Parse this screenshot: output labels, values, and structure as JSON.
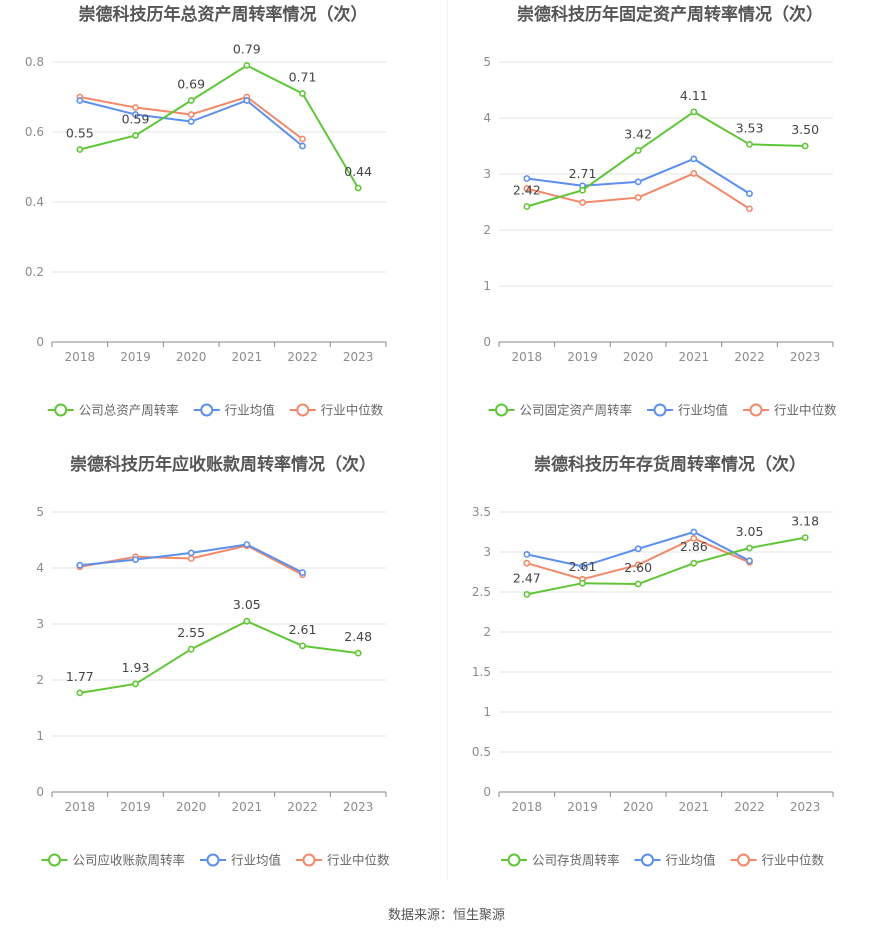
{
  "legend_common": {
    "avg": "行业均值",
    "median": "行业中位数"
  },
  "colors": {
    "company": "#5fc735",
    "avg": "#5b8ff0",
    "median": "#f4896a",
    "grid": "#e6e6e6",
    "axis": "#8a8a8a",
    "tick": "#8c8c8c",
    "title": "#555555"
  },
  "footer": {
    "source": "数据来源：恒生聚源"
  },
  "chart_data": [
    {
      "type": "line",
      "title": "崇德科技历年总资产周转率情况（次）",
      "categories": [
        "2018",
        "2019",
        "2020",
        "2021",
        "2022",
        "2023"
      ],
      "ylim": [
        0,
        0.8
      ],
      "yticks": [
        0,
        0.2,
        0.4,
        0.6,
        0.8
      ],
      "ytick_labels": [
        "0",
        "0.2",
        "0.4",
        "0.6",
        "0.8"
      ],
      "grid": true,
      "legend_position": "bottom",
      "series": [
        {
          "name": "公司总资产周转率",
          "role": "company",
          "values": [
            0.55,
            0.59,
            0.69,
            0.79,
            0.71,
            0.44
          ],
          "labels": [
            "0.55",
            "0.59",
            "0.69",
            "0.79",
            "0.71",
            "0.44"
          ]
        },
        {
          "name": "行业均值",
          "role": "avg",
          "values": [
            0.69,
            0.65,
            0.63,
            0.69,
            0.56,
            null
          ]
        },
        {
          "name": "行业中位数",
          "role": "median",
          "values": [
            0.7,
            0.67,
            0.65,
            0.7,
            0.58,
            null
          ]
        }
      ]
    },
    {
      "type": "line",
      "title": "崇德科技历年固定资产周转率情况（次）",
      "categories": [
        "2018",
        "2019",
        "2020",
        "2021",
        "2022",
        "2023"
      ],
      "ylim": [
        0,
        5
      ],
      "yticks": [
        0,
        1,
        2,
        3,
        4,
        5
      ],
      "ytick_labels": [
        "0",
        "1",
        "2",
        "3",
        "4",
        "5"
      ],
      "grid": true,
      "legend_position": "bottom",
      "series": [
        {
          "name": "公司固定资产周转率",
          "role": "company",
          "values": [
            2.42,
            2.71,
            3.42,
            4.11,
            3.53,
            3.5
          ],
          "labels": [
            "2.42",
            "2.71",
            "3.42",
            "4.11",
            "3.53",
            "3.50"
          ]
        },
        {
          "name": "行业均值",
          "role": "avg",
          "values": [
            2.92,
            2.79,
            2.86,
            3.27,
            2.65,
            null
          ]
        },
        {
          "name": "行业中位数",
          "role": "median",
          "values": [
            2.74,
            2.49,
            2.58,
            3.01,
            2.38,
            null
          ]
        }
      ]
    },
    {
      "type": "line",
      "title": "崇德科技历年应收账款周转率情况（次）",
      "categories": [
        "2018",
        "2019",
        "2020",
        "2021",
        "2022",
        "2023"
      ],
      "ylim": [
        0,
        5
      ],
      "yticks": [
        0,
        1,
        2,
        3,
        4,
        5
      ],
      "ytick_labels": [
        "0",
        "1",
        "2",
        "3",
        "4",
        "5"
      ],
      "grid": true,
      "legend_position": "bottom",
      "series": [
        {
          "name": "公司应收账款周转率",
          "role": "company",
          "values": [
            1.77,
            1.93,
            2.55,
            3.05,
            2.61,
            2.48
          ],
          "labels": [
            "1.77",
            "1.93",
            "2.55",
            "3.05",
            "2.61",
            "2.48"
          ]
        },
        {
          "name": "行业均值",
          "role": "avg",
          "values": [
            4.05,
            4.15,
            4.27,
            4.42,
            3.92,
            null
          ]
        },
        {
          "name": "行业中位数",
          "role": "median",
          "values": [
            4.02,
            4.2,
            4.17,
            4.4,
            3.88,
            null
          ]
        }
      ]
    },
    {
      "type": "line",
      "title": "崇德科技历年存货周转率情况（次）",
      "categories": [
        "2018",
        "2019",
        "2020",
        "2021",
        "2022",
        "2023"
      ],
      "ylim": [
        0,
        3.5
      ],
      "yticks": [
        0,
        0.5,
        1,
        1.5,
        2,
        2.5,
        3,
        3.5
      ],
      "ytick_labels": [
        "0",
        "0.5",
        "1",
        "1.5",
        "2",
        "2.5",
        "3",
        "3.5"
      ],
      "grid": true,
      "legend_position": "bottom",
      "series": [
        {
          "name": "公司存货周转率",
          "role": "company",
          "values": [
            2.47,
            2.61,
            2.6,
            2.86,
            3.05,
            3.18
          ],
          "labels": [
            "2.47",
            "2.61",
            "2.60",
            "2.86",
            "3.05",
            "3.18"
          ]
        },
        {
          "name": "行业均值",
          "role": "avg",
          "values": [
            2.97,
            2.82,
            3.04,
            3.25,
            2.89,
            null
          ]
        },
        {
          "name": "行业中位数",
          "role": "median",
          "values": [
            2.86,
            2.66,
            2.84,
            3.17,
            2.87,
            null
          ]
        }
      ]
    }
  ]
}
